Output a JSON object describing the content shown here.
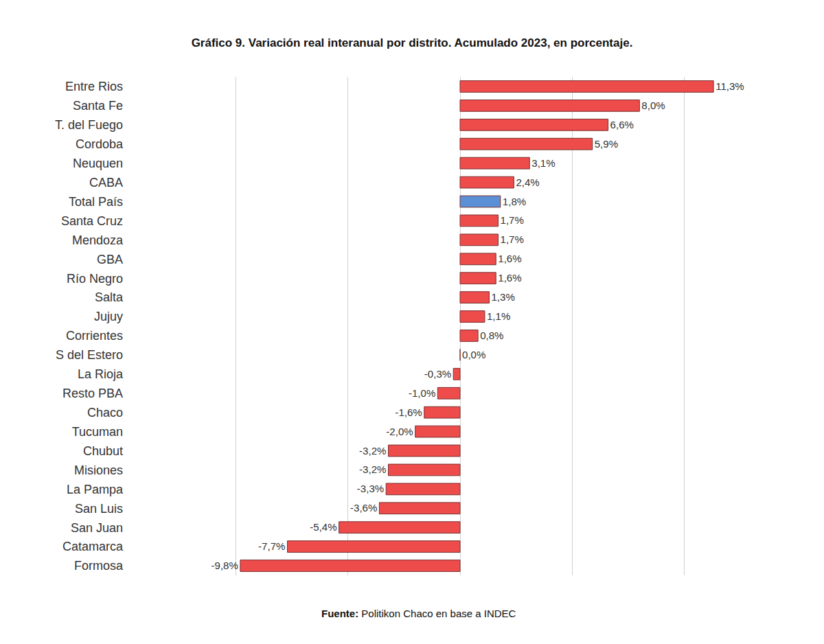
{
  "chart_data": {
    "type": "bar",
    "orientation": "horizontal",
    "title": "Gráfico 9. Variación real interanual por distrito. Acumulado 2023, en porcentaje.",
    "source": {
      "label": "Fuente:",
      "text": "Politikon Chaco en base a INDEC"
    },
    "categories": [
      "Entre Rios",
      "Santa Fe",
      "T. del Fuego",
      "Cordoba",
      "Neuquen",
      "CABA",
      "Total País",
      "Santa Cruz",
      "Mendoza",
      "GBA",
      "Río Negro",
      "Salta",
      "Jujuy",
      "Corrientes",
      "S del Estero",
      "La Rioja",
      "Resto PBA",
      "Chaco",
      "Tucuman",
      "Chubut",
      "Misiones",
      "La Pampa",
      "San Luis",
      "San Juan",
      "Catamarca",
      "Formosa"
    ],
    "values": [
      11.3,
      8.0,
      6.6,
      5.9,
      3.1,
      2.4,
      1.8,
      1.7,
      1.7,
      1.6,
      1.6,
      1.3,
      1.1,
      0.8,
      0.0,
      -0.3,
      -1.0,
      -1.6,
      -2.0,
      -3.2,
      -3.2,
      -3.3,
      -3.6,
      -5.4,
      -7.7,
      -9.8
    ],
    "value_labels": [
      "11,3%",
      "8,0%",
      "6,6%",
      "5,9%",
      "3,1%",
      "2,4%",
      "1,8%",
      "1,7%",
      "1,7%",
      "1,6%",
      "1,6%",
      "1,3%",
      "1,1%",
      "0,8%",
      "0,0%",
      "-0,3%",
      "-1,0%",
      "-1,6%",
      "-2,0%",
      "-3,2%",
      "-3,2%",
      "-3,3%",
      "-3,6%",
      "-5,4%",
      "-7,7%",
      "-9,8%"
    ],
    "colors": [
      "#ee4b4b",
      "#ee4b4b",
      "#ee4b4b",
      "#ee4b4b",
      "#ee4b4b",
      "#ee4b4b",
      "#5b8fd6",
      "#ee4b4b",
      "#ee4b4b",
      "#ee4b4b",
      "#ee4b4b",
      "#ee4b4b",
      "#ee4b4b",
      "#ee4b4b",
      "#ee4b4b",
      "#ee4b4b",
      "#ee4b4b",
      "#ee4b4b",
      "#ee4b4b",
      "#ee4b4b",
      "#ee4b4b",
      "#ee4b4b",
      "#ee4b4b",
      "#ee4b4b",
      "#ee4b4b",
      "#ee4b4b"
    ],
    "xlim": [
      -15,
      15
    ],
    "xticks": [
      -15,
      -10,
      -5,
      0,
      5,
      10,
      15
    ],
    "grid": true,
    "data_labels": true,
    "tick_labels": "y"
  }
}
